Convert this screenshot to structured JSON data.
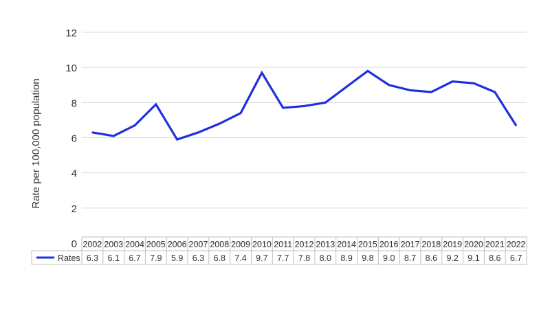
{
  "chart_data": {
    "type": "line",
    "title": "",
    "ylabel": "Rate per 100,000 population",
    "xlabel": "",
    "ylim": [
      0,
      12
    ],
    "yticks": [
      0,
      2,
      4,
      6,
      8,
      10,
      12
    ],
    "grid": true,
    "legend_position": "bottom-left (data table)",
    "line_color": "#1f2fe0",
    "categories": [
      "2002",
      "2003",
      "2004",
      "2005",
      "2006",
      "2007",
      "2008",
      "2009",
      "2010",
      "2011",
      "2012",
      "2013",
      "2014",
      "2015",
      "2016",
      "2017",
      "2018",
      "2019",
      "2020",
      "2021",
      "2022"
    ],
    "series": [
      {
        "name": "Rates",
        "values": [
          6.3,
          6.1,
          6.7,
          7.9,
          5.9,
          6.3,
          6.8,
          7.4,
          9.7,
          7.7,
          7.8,
          8.0,
          8.9,
          9.8,
          9.0,
          8.7,
          8.6,
          9.2,
          9.1,
          8.6,
          6.7
        ],
        "labels": [
          "6.3",
          "6.1",
          "6.7",
          "7.9",
          "5.9",
          "6.3",
          "6.8",
          "7.4",
          "9.7",
          "7.7",
          "7.8",
          "8.0",
          "8.9",
          "9.8",
          "9.0",
          "8.7",
          "8.6",
          "9.2",
          "9.1",
          "8.6",
          "6.7"
        ]
      }
    ]
  }
}
